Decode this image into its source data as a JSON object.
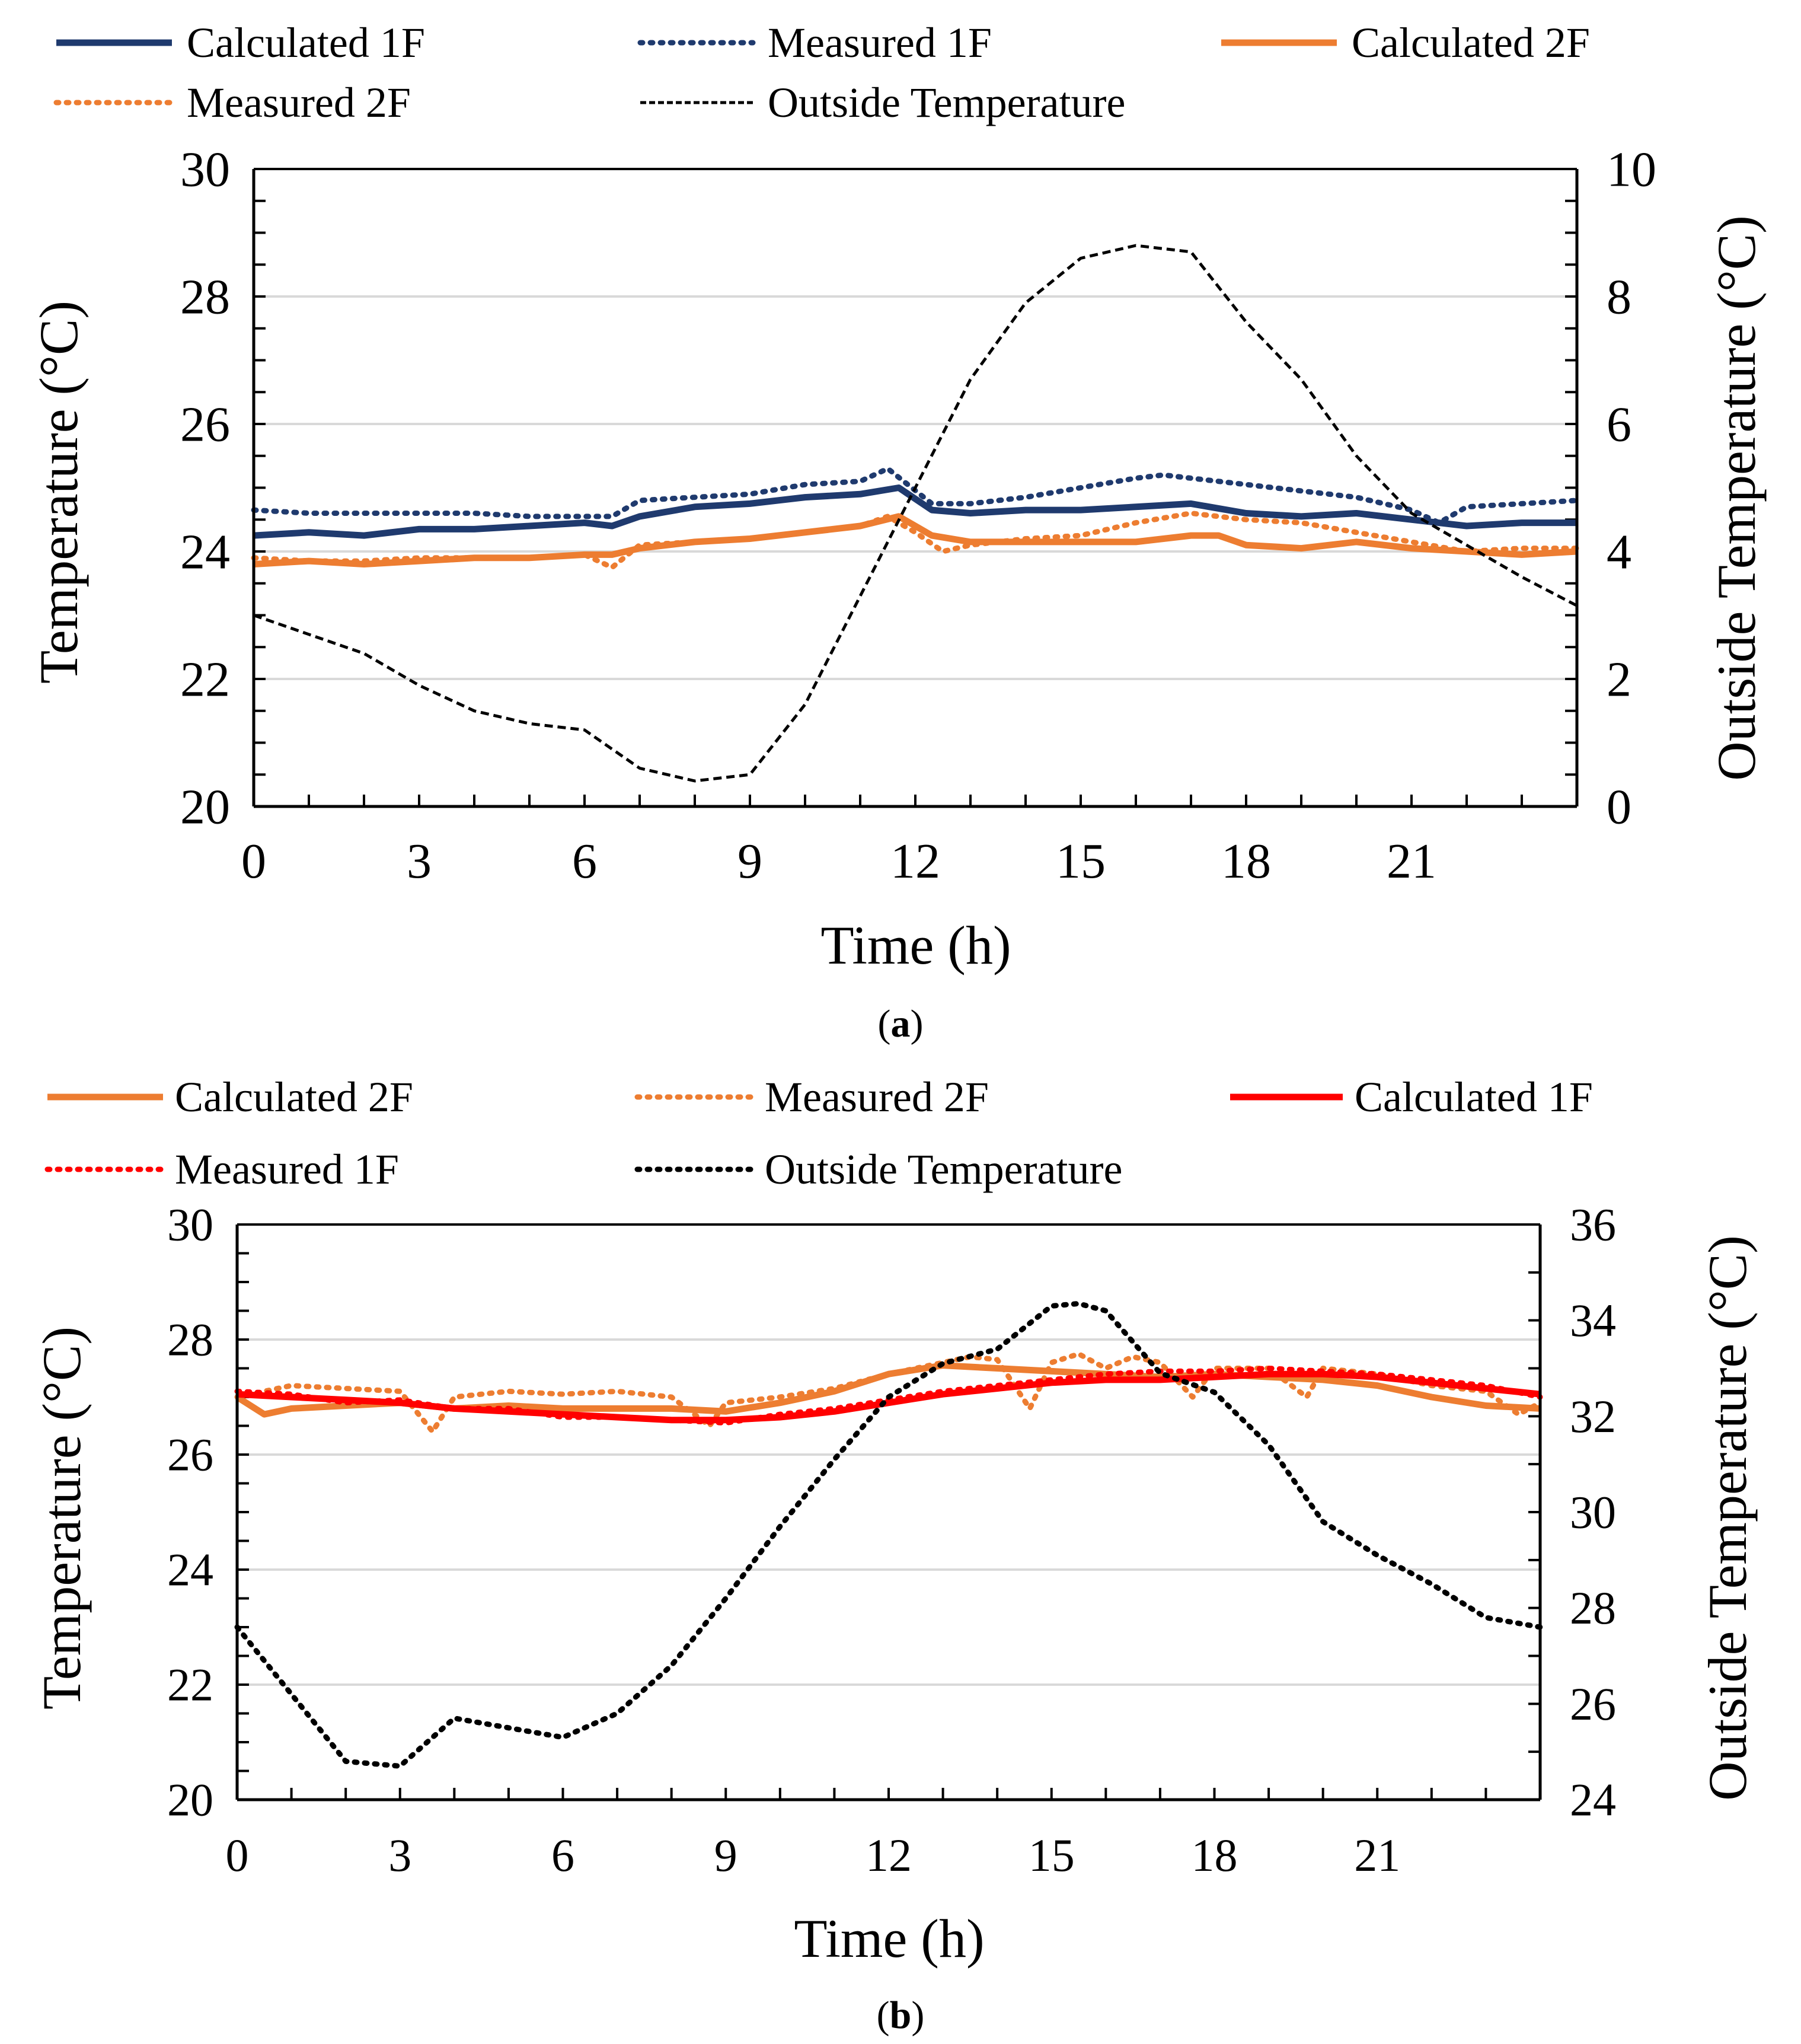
{
  "chart_data": [
    {
      "panel": "a",
      "caption_label": "a",
      "type": "line",
      "xlabel": "Time (h)",
      "ylabel": "Temperature (°C)",
      "y2label": "Outside Temperature (°C)",
      "xlim": [
        0,
        24
      ],
      "ylim": [
        20,
        30
      ],
      "y2lim": [
        0,
        10
      ],
      "xticks": [
        "0",
        "3",
        "6",
        "9",
        "12",
        "15",
        "18",
        "21"
      ],
      "yticks": [
        "20",
        "22",
        "24",
        "26",
        "28",
        "30"
      ],
      "y2ticks": [
        "0",
        "2",
        "4",
        "6",
        "8",
        "10"
      ],
      "grid": "horizontal",
      "legend": "top",
      "series": [
        {
          "name": "Calculated 1F",
          "color": "#1F3A6E",
          "style": "solid",
          "axis": "left",
          "x": [
            0,
            1,
            2,
            3,
            4,
            5,
            6,
            6.5,
            7,
            8,
            9,
            10,
            11,
            11.7,
            12.3,
            13,
            14,
            15,
            16,
            17,
            18,
            19,
            20,
            21,
            22,
            23,
            24
          ],
          "y": [
            24.25,
            24.3,
            24.25,
            24.35,
            24.35,
            24.4,
            24.45,
            24.4,
            24.55,
            24.7,
            24.75,
            24.85,
            24.9,
            25.0,
            24.65,
            24.6,
            24.65,
            24.65,
            24.7,
            24.75,
            24.6,
            24.55,
            24.6,
            24.5,
            24.4,
            24.45,
            24.45
          ]
        },
        {
          "name": "Measured 1F",
          "color": "#1F3A6E",
          "style": "dotted",
          "axis": "left",
          "x": [
            0,
            1,
            2,
            3,
            4,
            5,
            6,
            6.5,
            7,
            8,
            9,
            10,
            11,
            11.5,
            12.3,
            13,
            14,
            15,
            16,
            16.5,
            17,
            18,
            19,
            20,
            21,
            21.5,
            22,
            23,
            24
          ],
          "y": [
            24.65,
            24.6,
            24.6,
            24.6,
            24.6,
            24.55,
            24.55,
            24.55,
            24.8,
            24.85,
            24.9,
            25.05,
            25.1,
            25.3,
            24.75,
            24.75,
            24.85,
            25.0,
            25.15,
            25.2,
            25.15,
            25.05,
            24.95,
            24.85,
            24.65,
            24.45,
            24.7,
            24.75,
            24.8
          ]
        },
        {
          "name": "Calculated 2F",
          "color": "#ED7D31",
          "style": "solid",
          "axis": "left",
          "x": [
            0,
            1,
            2,
            3,
            4,
            5,
            6,
            6.5,
            7,
            8,
            9,
            10,
            11,
            11.7,
            12.3,
            13,
            14,
            15,
            16,
            17,
            17.5,
            18,
            19,
            20,
            21,
            22,
            23,
            24
          ],
          "y": [
            23.8,
            23.85,
            23.8,
            23.85,
            23.9,
            23.9,
            23.95,
            23.95,
            24.05,
            24.15,
            24.2,
            24.3,
            24.4,
            24.55,
            24.25,
            24.15,
            24.15,
            24.15,
            24.15,
            24.25,
            24.25,
            24.1,
            24.05,
            24.15,
            24.05,
            24.0,
            23.95,
            24.0
          ]
        },
        {
          "name": "Measured 2F",
          "color": "#ED7D31",
          "style": "dotted",
          "axis": "left",
          "x": [
            0,
            1,
            2,
            3,
            4,
            5,
            6,
            6.5,
            7,
            8,
            9,
            10,
            11,
            11.5,
            12,
            12.5,
            13,
            14,
            15,
            16,
            17,
            18,
            19,
            20,
            21,
            22,
            23,
            24
          ],
          "y": [
            23.9,
            23.85,
            23.85,
            23.9,
            23.9,
            23.9,
            23.95,
            23.75,
            24.1,
            24.15,
            24.2,
            24.3,
            24.4,
            24.55,
            24.3,
            24.0,
            24.1,
            24.2,
            24.25,
            24.45,
            24.6,
            24.5,
            24.45,
            24.3,
            24.15,
            24.0,
            24.05,
            24.05
          ]
        },
        {
          "name": "Outside Temperature",
          "color": "#000000",
          "style": "dashed",
          "axis": "right",
          "x": [
            0,
            1,
            2,
            3,
            4,
            5,
            6,
            7,
            8,
            9,
            10,
            11,
            12,
            13,
            14,
            15,
            16,
            17,
            18,
            19,
            20,
            21,
            22,
            23,
            24
          ],
          "y": [
            3.0,
            2.7,
            2.4,
            1.9,
            1.5,
            1.3,
            1.2,
            0.6,
            0.4,
            0.5,
            1.6,
            3.3,
            5.0,
            6.7,
            7.9,
            8.6,
            8.8,
            8.7,
            7.6,
            6.7,
            5.5,
            4.6,
            4.1,
            3.6,
            3.15
          ]
        }
      ]
    },
    {
      "panel": "b",
      "caption_label": "b",
      "type": "line",
      "xlabel": "Time (h)",
      "ylabel": "Temperature (°C)",
      "y2label": "Outside Temperature (°C)",
      "xlim": [
        0,
        24
      ],
      "ylim": [
        20,
        30
      ],
      "y2lim": [
        24,
        36
      ],
      "xticks": [
        "0",
        "3",
        "6",
        "9",
        "12",
        "15",
        "18",
        "21"
      ],
      "yticks": [
        "20",
        "22",
        "24",
        "26",
        "28",
        "30"
      ],
      "y2ticks": [
        "24",
        "26",
        "28",
        "30",
        "32",
        "34",
        "36"
      ],
      "grid": "horizontal",
      "legend": "top",
      "series": [
        {
          "name": "Calculated 2F",
          "color": "#ED7D31",
          "style": "solid",
          "axis": "left",
          "x": [
            0,
            0.5,
            1,
            2,
            3,
            4,
            5,
            6,
            7,
            8,
            9,
            10,
            11,
            12,
            13,
            14,
            15,
            16,
            17,
            18,
            19,
            20,
            21,
            22,
            23,
            24
          ],
          "y": [
            27.0,
            26.7,
            26.8,
            26.85,
            26.9,
            26.8,
            26.85,
            26.8,
            26.8,
            26.8,
            26.75,
            26.9,
            27.1,
            27.4,
            27.55,
            27.5,
            27.45,
            27.4,
            27.35,
            27.4,
            27.35,
            27.3,
            27.2,
            27.0,
            26.85,
            26.8
          ]
        },
        {
          "name": "Measured 2F",
          "color": "#ED7D31",
          "style": "dotted",
          "axis": "left",
          "x": [
            0,
            0.5,
            1,
            2,
            3,
            3.6,
            4,
            5,
            6,
            7,
            8,
            8.7,
            9,
            10,
            11,
            12,
            13,
            13.5,
            14,
            14.6,
            15,
            15.5,
            16,
            16.5,
            17,
            17.6,
            18,
            19,
            19.7,
            20,
            21,
            22,
            23,
            23.6,
            24
          ],
          "y": [
            27.0,
            27.1,
            27.2,
            27.15,
            27.1,
            26.4,
            27.0,
            27.1,
            27.05,
            27.1,
            27.0,
            26.5,
            26.9,
            27.0,
            27.15,
            27.4,
            27.6,
            27.7,
            27.65,
            26.8,
            27.6,
            27.75,
            27.5,
            27.7,
            27.6,
            27.0,
            27.5,
            27.5,
            27.0,
            27.5,
            27.4,
            27.2,
            27.1,
            26.7,
            26.9
          ]
        },
        {
          "name": "Calculated 1F",
          "color": "#FF0000",
          "style": "solid",
          "axis": "left",
          "x": [
            0,
            1,
            2,
            3,
            4,
            5,
            6,
            7,
            8,
            9,
            10,
            11,
            12,
            13,
            14,
            15,
            16,
            17,
            18,
            19,
            20,
            21,
            22,
            23,
            24
          ],
          "y": [
            27.05,
            27.0,
            26.95,
            26.9,
            26.8,
            26.75,
            26.7,
            26.65,
            26.6,
            26.6,
            26.65,
            26.75,
            26.9,
            27.05,
            27.15,
            27.25,
            27.3,
            27.3,
            27.35,
            27.4,
            27.4,
            27.35,
            27.25,
            27.15,
            27.05
          ]
        },
        {
          "name": "Measured 1F",
          "color": "#FF0000",
          "style": "dotted",
          "axis": "left",
          "x": [
            0,
            1,
            2,
            3,
            4,
            5,
            6,
            7,
            8,
            9,
            10,
            11,
            12,
            13,
            14,
            15,
            16,
            17,
            18,
            19,
            20,
            21,
            22,
            23,
            24
          ],
          "y": [
            27.1,
            27.05,
            26.9,
            26.95,
            26.8,
            26.8,
            26.65,
            26.65,
            26.6,
            26.55,
            26.7,
            26.8,
            26.95,
            27.1,
            27.2,
            27.3,
            27.4,
            27.45,
            27.45,
            27.5,
            27.45,
            27.4,
            27.3,
            27.2,
            27.0
          ]
        },
        {
          "name": "Outside Temperature",
          "color": "#000000",
          "style": "dotted",
          "axis": "right",
          "x": [
            0,
            1,
            2,
            3,
            4,
            5,
            6,
            7,
            8,
            9,
            10,
            11,
            12,
            13,
            14,
            15,
            15.5,
            16,
            17,
            18,
            19,
            20,
            21,
            22,
            23,
            24
          ],
          "y": [
            27.6,
            26.2,
            24.8,
            24.7,
            25.7,
            25.5,
            25.3,
            25.8,
            26.8,
            28.2,
            29.7,
            31.1,
            32.4,
            33.1,
            33.4,
            34.3,
            34.35,
            34.2,
            32.9,
            32.5,
            31.4,
            29.8,
            29.1,
            28.5,
            27.8,
            27.6
          ]
        }
      ]
    }
  ]
}
